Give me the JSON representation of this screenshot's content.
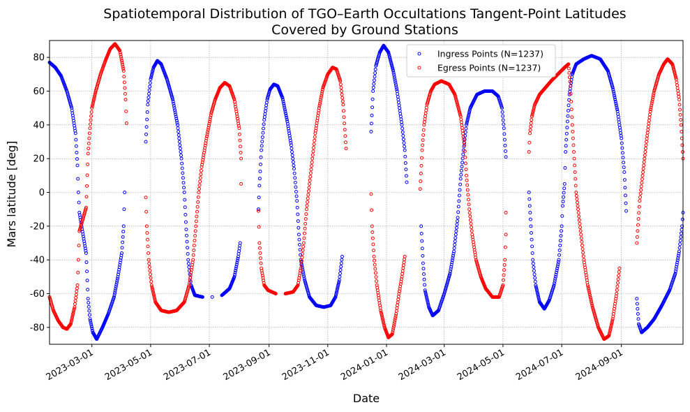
{
  "chart_data": {
    "type": "scatter",
    "title": "Spatiotemporal Distribution of TGO–Earth Occultations Tangent-Point Latitudes",
    "subtitle": "Covered by Ground Stations",
    "xlabel": "Date",
    "ylabel": "Mars latitude [deg]",
    "xlim": [
      "2023-01-16",
      "2024-11-04"
    ],
    "ylim": [
      -90,
      90
    ],
    "yticks": [
      -80,
      -60,
      -40,
      -20,
      0,
      20,
      40,
      60,
      80
    ],
    "xticks": [
      "2023-03-01",
      "2023-05-01",
      "2023-07-01",
      "2023-09-01",
      "2023-11-01",
      "2024-01-01",
      "2024-03-01",
      "2024-05-01",
      "2024-07-01",
      "2024-09-01"
    ],
    "grid": true,
    "legend": {
      "position": "top-right"
    },
    "series": [
      {
        "name": "Ingress Points (N=1237)",
        "color": "#0000ff",
        "marker": "hollow-circle",
        "points": [
          [
            "2023-01-16",
            77
          ],
          [
            "2023-01-22",
            74
          ],
          [
            "2023-01-28",
            69
          ],
          [
            "2023-02-03",
            60
          ],
          [
            "2023-02-08",
            50
          ],
          [
            "2023-02-12",
            35
          ],
          [
            "2023-02-14",
            16
          ],
          [
            "2023-02-15",
            0
          ],
          [
            "2023-02-16",
            -12
          ],
          [
            "2023-02-23",
            -36
          ],
          [
            "2023-02-25",
            -63
          ],
          [
            "2023-02-27",
            -75
          ],
          [
            "2023-03-02",
            -83
          ],
          [
            "2023-03-06",
            -87
          ],
          [
            "2023-03-12",
            -80
          ],
          [
            "2023-03-18",
            -72
          ],
          [
            "2023-03-24",
            -62
          ],
          [
            "2023-03-28",
            -50
          ],
          [
            "2023-04-01",
            -36
          ],
          [
            "2023-04-03",
            -20
          ],
          [
            "2023-04-04",
            0
          ],
          [
            "2023-04-26",
            30
          ],
          [
            "2023-04-28",
            52
          ],
          [
            "2023-05-01",
            67
          ],
          [
            "2023-05-04",
            74
          ],
          [
            "2023-05-08",
            78
          ],
          [
            "2023-05-12",
            76
          ],
          [
            "2023-05-18",
            67
          ],
          [
            "2023-05-24",
            55
          ],
          [
            "2023-05-29",
            40
          ],
          [
            "2023-06-02",
            20
          ],
          [
            "2023-06-05",
            0
          ],
          [
            "2023-06-07",
            -22
          ],
          [
            "2023-06-09",
            -40
          ],
          [
            "2023-06-12",
            -55
          ],
          [
            "2023-06-16",
            -61
          ],
          [
            "2023-06-24",
            -62
          ],
          [
            "2023-07-04",
            -62
          ],
          [
            "2023-07-14",
            -61
          ],
          [
            "2023-07-22",
            -57
          ],
          [
            "2023-07-27",
            -50
          ],
          [
            "2023-07-31",
            -38
          ],
          [
            "2023-08-02",
            -30
          ],
          [
            "2023-08-21",
            -10
          ],
          [
            "2023-08-22",
            4
          ],
          [
            "2023-08-24",
            25
          ],
          [
            "2023-08-27",
            43
          ],
          [
            "2023-08-30",
            55
          ],
          [
            "2023-09-02",
            61
          ],
          [
            "2023-09-06",
            64
          ],
          [
            "2023-09-10",
            63
          ],
          [
            "2023-09-15",
            56
          ],
          [
            "2023-09-20",
            42
          ],
          [
            "2023-09-24",
            28
          ],
          [
            "2023-09-27",
            14
          ],
          [
            "2023-09-30",
            -5
          ],
          [
            "2023-10-02",
            -25
          ],
          [
            "2023-10-04",
            -40
          ],
          [
            "2023-10-08",
            -52
          ],
          [
            "2023-10-13",
            -62
          ],
          [
            "2023-10-20",
            -67
          ],
          [
            "2023-10-28",
            -68
          ],
          [
            "2023-11-04",
            -67
          ],
          [
            "2023-11-09",
            -62
          ],
          [
            "2023-11-13",
            -52
          ],
          [
            "2023-11-16",
            -38
          ],
          [
            "2023-12-16",
            36
          ],
          [
            "2023-12-18",
            60
          ],
          [
            "2023-12-21",
            75
          ],
          [
            "2023-12-25",
            83
          ],
          [
            "2023-12-29",
            87
          ],
          [
            "2024-01-03",
            83
          ],
          [
            "2024-01-08",
            72
          ],
          [
            "2024-01-12",
            60
          ],
          [
            "2024-01-17",
            40
          ],
          [
            "2024-01-20",
            25
          ],
          [
            "2024-01-22",
            6
          ],
          [
            "2024-02-06",
            -20
          ],
          [
            "2024-02-08",
            -42
          ],
          [
            "2024-02-10",
            -58
          ],
          [
            "2024-02-14",
            -68
          ],
          [
            "2024-02-18",
            -73
          ],
          [
            "2024-02-24",
            -70
          ],
          [
            "2024-03-01",
            -60
          ],
          [
            "2024-03-07",
            -48
          ],
          [
            "2024-03-11",
            -35
          ],
          [
            "2024-03-15",
            -15
          ],
          [
            "2024-03-18",
            8
          ],
          [
            "2024-03-21",
            25
          ],
          [
            "2024-03-24",
            40
          ],
          [
            "2024-03-28",
            50
          ],
          [
            "2024-04-04",
            58
          ],
          [
            "2024-04-12",
            60
          ],
          [
            "2024-04-20",
            60
          ],
          [
            "2024-04-26",
            57
          ],
          [
            "2024-04-30",
            50
          ],
          [
            "2024-05-02",
            38
          ],
          [
            "2024-05-04",
            21
          ],
          [
            "2024-05-28",
            0
          ],
          [
            "2024-05-30",
            -20
          ],
          [
            "2024-06-01",
            -40
          ],
          [
            "2024-06-04",
            -55
          ],
          [
            "2024-06-08",
            -65
          ],
          [
            "2024-06-13",
            -69
          ],
          [
            "2024-06-18",
            -64
          ],
          [
            "2024-06-23",
            -55
          ],
          [
            "2024-06-28",
            -40
          ],
          [
            "2024-07-01",
            -20
          ],
          [
            "2024-07-02",
            -8
          ],
          [
            "2024-07-04",
            5
          ],
          [
            "2024-07-05",
            24
          ],
          [
            "2024-07-07",
            42
          ],
          [
            "2024-07-09",
            58
          ],
          [
            "2024-07-12",
            70
          ],
          [
            "2024-07-16",
            76
          ],
          [
            "2024-07-24",
            79
          ],
          [
            "2024-08-01",
            81
          ],
          [
            "2024-08-10",
            79
          ],
          [
            "2024-08-18",
            72
          ],
          [
            "2024-08-23",
            62
          ],
          [
            "2024-08-28",
            48
          ],
          [
            "2024-09-01",
            32
          ],
          [
            "2024-09-04",
            12
          ],
          [
            "2024-09-06",
            -11
          ],
          [
            "2024-09-17",
            -63
          ],
          [
            "2024-09-19",
            -78
          ],
          [
            "2024-09-22",
            -83
          ],
          [
            "2024-09-28",
            -80
          ],
          [
            "2024-10-05",
            -75
          ],
          [
            "2024-10-13",
            -67
          ],
          [
            "2024-10-21",
            -58
          ],
          [
            "2024-10-27",
            -48
          ],
          [
            "2024-10-31",
            -35
          ],
          [
            "2024-11-03",
            -20
          ],
          [
            "2024-11-04",
            -12
          ]
        ]
      },
      {
        "name": "Egress Points (N=1237)",
        "color": "#ff0000",
        "marker": "hollow-circle",
        "points": [
          [
            "2023-01-16",
            -62
          ],
          [
            "2023-01-20",
            -70
          ],
          [
            "2023-01-25",
            -76
          ],
          [
            "2023-01-30",
            -80
          ],
          [
            "2023-02-03",
            -81
          ],
          [
            "2023-02-07",
            -78
          ],
          [
            "2023-02-11",
            -68
          ],
          [
            "2023-02-14",
            -55
          ],
          [
            "2023-02-15",
            -40
          ],
          [
            "2023-02-16",
            -23
          ],
          [
            "2023-02-23",
            -9
          ],
          [
            "2023-02-25",
            23
          ],
          [
            "2023-02-27",
            38
          ],
          [
            "2023-03-01",
            50
          ],
          [
            "2023-03-05",
            60
          ],
          [
            "2023-03-10",
            70
          ],
          [
            "2023-03-15",
            78
          ],
          [
            "2023-03-20",
            85
          ],
          [
            "2023-03-25",
            88
          ],
          [
            "2023-03-30",
            84
          ],
          [
            "2023-04-03",
            72
          ],
          [
            "2023-04-05",
            55
          ],
          [
            "2023-04-06",
            41
          ],
          [
            "2023-04-26",
            -3
          ],
          [
            "2023-04-27",
            -20
          ],
          [
            "2023-04-29",
            -40
          ],
          [
            "2023-05-02",
            -55
          ],
          [
            "2023-05-06",
            -65
          ],
          [
            "2023-05-12",
            -70
          ],
          [
            "2023-05-20",
            -71
          ],
          [
            "2023-05-28",
            -70
          ],
          [
            "2023-06-05",
            -65
          ],
          [
            "2023-06-10",
            -55
          ],
          [
            "2023-06-14",
            -40
          ],
          [
            "2023-06-17",
            -20
          ],
          [
            "2023-06-20",
            0
          ],
          [
            "2023-06-23",
            15
          ],
          [
            "2023-06-28",
            32
          ],
          [
            "2023-07-03",
            47
          ],
          [
            "2023-07-07",
            55
          ],
          [
            "2023-07-12",
            62
          ],
          [
            "2023-07-17",
            65
          ],
          [
            "2023-07-22",
            63
          ],
          [
            "2023-07-27",
            55
          ],
          [
            "2023-08-01",
            38
          ],
          [
            "2023-08-03",
            20
          ],
          [
            "2023-08-03",
            5
          ],
          [
            "2023-08-21",
            -11
          ],
          [
            "2023-08-22",
            -30
          ],
          [
            "2023-08-24",
            -45
          ],
          [
            "2023-08-27",
            -55
          ],
          [
            "2023-08-31",
            -58
          ],
          [
            "2023-09-08",
            -60
          ],
          [
            "2023-09-18",
            -60
          ],
          [
            "2023-09-26",
            -59
          ],
          [
            "2023-10-01",
            -55
          ],
          [
            "2023-10-04",
            -45
          ],
          [
            "2023-10-07",
            -30
          ],
          [
            "2023-10-10",
            -10
          ],
          [
            "2023-10-13",
            5
          ],
          [
            "2023-10-16",
            20
          ],
          [
            "2023-10-19",
            35
          ],
          [
            "2023-10-23",
            50
          ],
          [
            "2023-10-27",
            62
          ],
          [
            "2023-11-01",
            70
          ],
          [
            "2023-11-06",
            74
          ],
          [
            "2023-11-10",
            73
          ],
          [
            "2023-11-14",
            66
          ],
          [
            "2023-11-17",
            52
          ],
          [
            "2023-11-20",
            26
          ],
          [
            "2023-12-16",
            -1
          ],
          [
            "2023-12-17",
            -20
          ],
          [
            "2023-12-19",
            -38
          ],
          [
            "2023-12-22",
            -55
          ],
          [
            "2023-12-26",
            -70
          ],
          [
            "2023-12-30",
            -80
          ],
          [
            "2024-01-03",
            -86
          ],
          [
            "2024-01-07",
            -84
          ],
          [
            "2024-01-11",
            -72
          ],
          [
            "2024-01-14",
            -60
          ],
          [
            "2024-01-17",
            -50
          ],
          [
            "2024-01-20",
            -38
          ],
          [
            "2024-02-05",
            2
          ],
          [
            "2024-02-07",
            25
          ],
          [
            "2024-02-09",
            40
          ],
          [
            "2024-02-12",
            52
          ],
          [
            "2024-02-16",
            60
          ],
          [
            "2024-02-20",
            64
          ],
          [
            "2024-02-27",
            66
          ],
          [
            "2024-03-06",
            64
          ],
          [
            "2024-03-12",
            58
          ],
          [
            "2024-03-18",
            45
          ],
          [
            "2024-03-22",
            28
          ],
          [
            "2024-03-24",
            10
          ],
          [
            "2024-03-27",
            -10
          ],
          [
            "2024-03-30",
            -25
          ],
          [
            "2024-04-03",
            -40
          ],
          [
            "2024-04-08",
            -50
          ],
          [
            "2024-04-13",
            -57
          ],
          [
            "2024-04-20",
            -62
          ],
          [
            "2024-04-27",
            -62
          ],
          [
            "2024-05-01",
            -55
          ],
          [
            "2024-05-03",
            -40
          ],
          [
            "2024-05-04",
            -25
          ],
          [
            "2024-05-04",
            -12
          ],
          [
            "2024-05-28",
            24
          ],
          [
            "2024-05-29",
            35
          ],
          [
            "2024-05-31",
            45
          ],
          [
            "2024-06-03",
            52
          ],
          [
            "2024-06-08",
            58
          ],
          [
            "2024-06-14",
            62
          ],
          [
            "2024-06-20",
            66
          ],
          [
            "2024-06-27",
            70
          ],
          [
            "2024-07-04",
            74
          ],
          [
            "2024-07-08",
            76
          ],
          [
            "2024-07-10",
            63
          ],
          [
            "2024-07-12",
            40
          ],
          [
            "2024-07-14",
            20
          ],
          [
            "2024-07-16",
            0
          ],
          [
            "2024-07-18",
            -10
          ],
          [
            "2024-07-21",
            -25
          ],
          [
            "2024-07-24",
            -40
          ],
          [
            "2024-07-28",
            -55
          ],
          [
            "2024-08-02",
            -68
          ],
          [
            "2024-08-08",
            -80
          ],
          [
            "2024-08-14",
            -87
          ],
          [
            "2024-08-19",
            -85
          ],
          [
            "2024-08-23",
            -75
          ],
          [
            "2024-08-27",
            -60
          ],
          [
            "2024-08-30",
            -45
          ],
          [
            "2024-09-17",
            -30
          ],
          [
            "2024-09-20",
            -5
          ],
          [
            "2024-09-23",
            10
          ],
          [
            "2024-09-27",
            30
          ],
          [
            "2024-10-01",
            48
          ],
          [
            "2024-10-05",
            60
          ],
          [
            "2024-10-10",
            70
          ],
          [
            "2024-10-15",
            76
          ],
          [
            "2024-10-19",
            79
          ],
          [
            "2024-10-24",
            76
          ],
          [
            "2024-10-28",
            67
          ],
          [
            "2024-10-31",
            55
          ],
          [
            "2024-11-02",
            40
          ],
          [
            "2024-11-04",
            20
          ]
        ]
      }
    ]
  }
}
